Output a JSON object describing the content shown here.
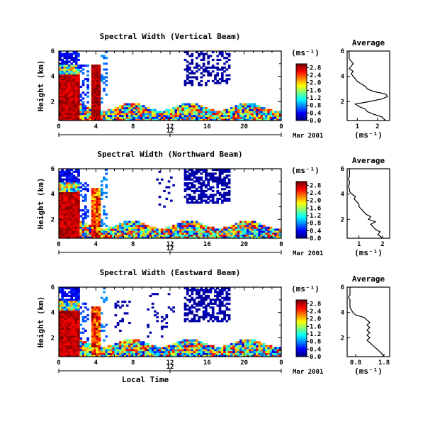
{
  "chart_data": [
    {
      "type": "heatmap",
      "title": "Spectral Width (Vertical Beam)",
      "ylabel": "Height (km)",
      "xlabel": "",
      "x_ticks": [
        "0",
        "4",
        "8",
        "12",
        "16",
        "20",
        "0"
      ],
      "y_ticks": [
        "2",
        "4",
        "6"
      ],
      "xlim": [
        0,
        24
      ],
      "ylim": [
        0.5,
        6
      ],
      "date_label": "Mar 2001",
      "date_tick": "12",
      "colorbar": {
        "unit": "(ms⁻¹)",
        "ticks": [
          "0.0",
          "0.4",
          "0.8",
          "1.2",
          "1.6",
          "2.0",
          "2.4",
          "2.8"
        ],
        "range": [
          0,
          3.0
        ]
      },
      "average": {
        "title": "Average",
        "xlabel": "(ms⁻¹)",
        "x_ticks": [
          "1",
          "2"
        ],
        "y_ticks": [
          "2",
          "4",
          "6"
        ],
        "xlim": [
          0.5,
          2.6
        ],
        "height": [
          0.5,
          0.8,
          1.0,
          1.2,
          1.4,
          1.6,
          1.8,
          2.0,
          2.2,
          2.4,
          2.6,
          2.8,
          3.0,
          3.2,
          3.4,
          3.6,
          3.8,
          4.0,
          4.2,
          4.4,
          4.6,
          4.8,
          5.0,
          5.2,
          5.4,
          5.6,
          5.8,
          6.0
        ],
        "value": [
          2.4,
          2.2,
          1.8,
          1.5,
          1.4,
          1.1,
          0.9,
          1.6,
          2.2,
          2.5,
          2.4,
          1.8,
          1.5,
          1.4,
          1.2,
          1.0,
          0.9,
          0.8,
          0.7,
          0.8,
          0.6,
          0.7,
          0.8,
          0.7,
          0.6,
          0.6,
          0.6,
          0.6
        ]
      }
    },
    {
      "type": "heatmap",
      "title": "Spectral Width (Northward Beam)",
      "ylabel": "Height (km)",
      "xlabel": "",
      "x_ticks": [
        "0",
        "4",
        "8",
        "12",
        "16",
        "20",
        "0"
      ],
      "y_ticks": [
        "2",
        "4",
        "6"
      ],
      "xlim": [
        0,
        24
      ],
      "ylim": [
        0.5,
        6
      ],
      "date_label": "Mar 2001",
      "date_tick": "12",
      "colorbar": {
        "unit": "(ms⁻¹)",
        "ticks": [
          "0.0",
          "0.4",
          "0.8",
          "1.2",
          "1.6",
          "2.0",
          "2.4",
          "2.8"
        ],
        "range": [
          0,
          3.0
        ]
      },
      "average": {
        "title": "Average",
        "xlabel": "(ms⁻¹)",
        "x_ticks": [
          "1",
          "2"
        ],
        "y_ticks": [
          "2",
          "4",
          "6"
        ],
        "xlim": [
          0.5,
          2.3
        ],
        "height": [
          0.5,
          0.8,
          1.0,
          1.2,
          1.4,
          1.6,
          1.8,
          2.0,
          2.2,
          2.4,
          2.6,
          2.8,
          3.0,
          3.2,
          3.4,
          3.6,
          3.8,
          4.0,
          4.2,
          4.4,
          4.6,
          4.8,
          5.0,
          5.2,
          5.4,
          5.6,
          5.8,
          6.0
        ],
        "value": [
          2.0,
          1.8,
          1.9,
          1.7,
          1.6,
          1.5,
          1.7,
          1.4,
          1.5,
          1.3,
          1.2,
          1.1,
          1.0,
          1.0,
          0.9,
          0.8,
          0.85,
          0.7,
          0.6,
          0.6,
          0.55,
          0.6,
          0.6,
          0.55,
          0.6,
          0.6,
          0.6,
          0.6
        ]
      }
    },
    {
      "type": "heatmap",
      "title": "Spectral Width (Eastward Beam)",
      "ylabel": "Height (km)",
      "xlabel": "Local Time",
      "x_ticks": [
        "0",
        "4",
        "8",
        "12",
        "16",
        "20",
        "0"
      ],
      "y_ticks": [
        "2",
        "4",
        "6"
      ],
      "xlim": [
        0,
        24
      ],
      "ylim": [
        0.5,
        6
      ],
      "date_label": "Mar 2001",
      "date_tick": "12",
      "colorbar": {
        "unit": "(ms⁻¹)",
        "ticks": [
          "0.0",
          "0.4",
          "0.8",
          "1.2",
          "1.6",
          "2.0",
          "2.4",
          "2.8"
        ],
        "range": [
          0,
          3.0
        ]
      },
      "average": {
        "title": "Average",
        "xlabel": "(ms⁻¹)",
        "x_ticks": [
          "0.8",
          "1.8"
        ],
        "y_ticks": [
          "2",
          "4",
          "6"
        ],
        "xlim": [
          0.5,
          2.0
        ],
        "height": [
          0.5,
          0.8,
          1.0,
          1.2,
          1.4,
          1.6,
          1.8,
          2.0,
          2.2,
          2.4,
          2.6,
          2.8,
          3.0,
          3.2,
          3.4,
          3.6,
          3.8,
          4.0,
          4.2,
          4.4,
          4.6,
          4.8,
          5.0,
          5.2,
          5.4,
          5.6,
          5.8,
          6.0
        ],
        "value": [
          1.8,
          1.7,
          1.6,
          1.5,
          1.4,
          1.3,
          1.2,
          1.3,
          1.2,
          1.3,
          1.2,
          1.3,
          1.2,
          1.3,
          1.2,
          1.1,
          0.8,
          0.7,
          0.65,
          0.6,
          0.6,
          0.6,
          0.6,
          0.55,
          0.6,
          0.6,
          0.6,
          0.6
        ]
      }
    }
  ]
}
